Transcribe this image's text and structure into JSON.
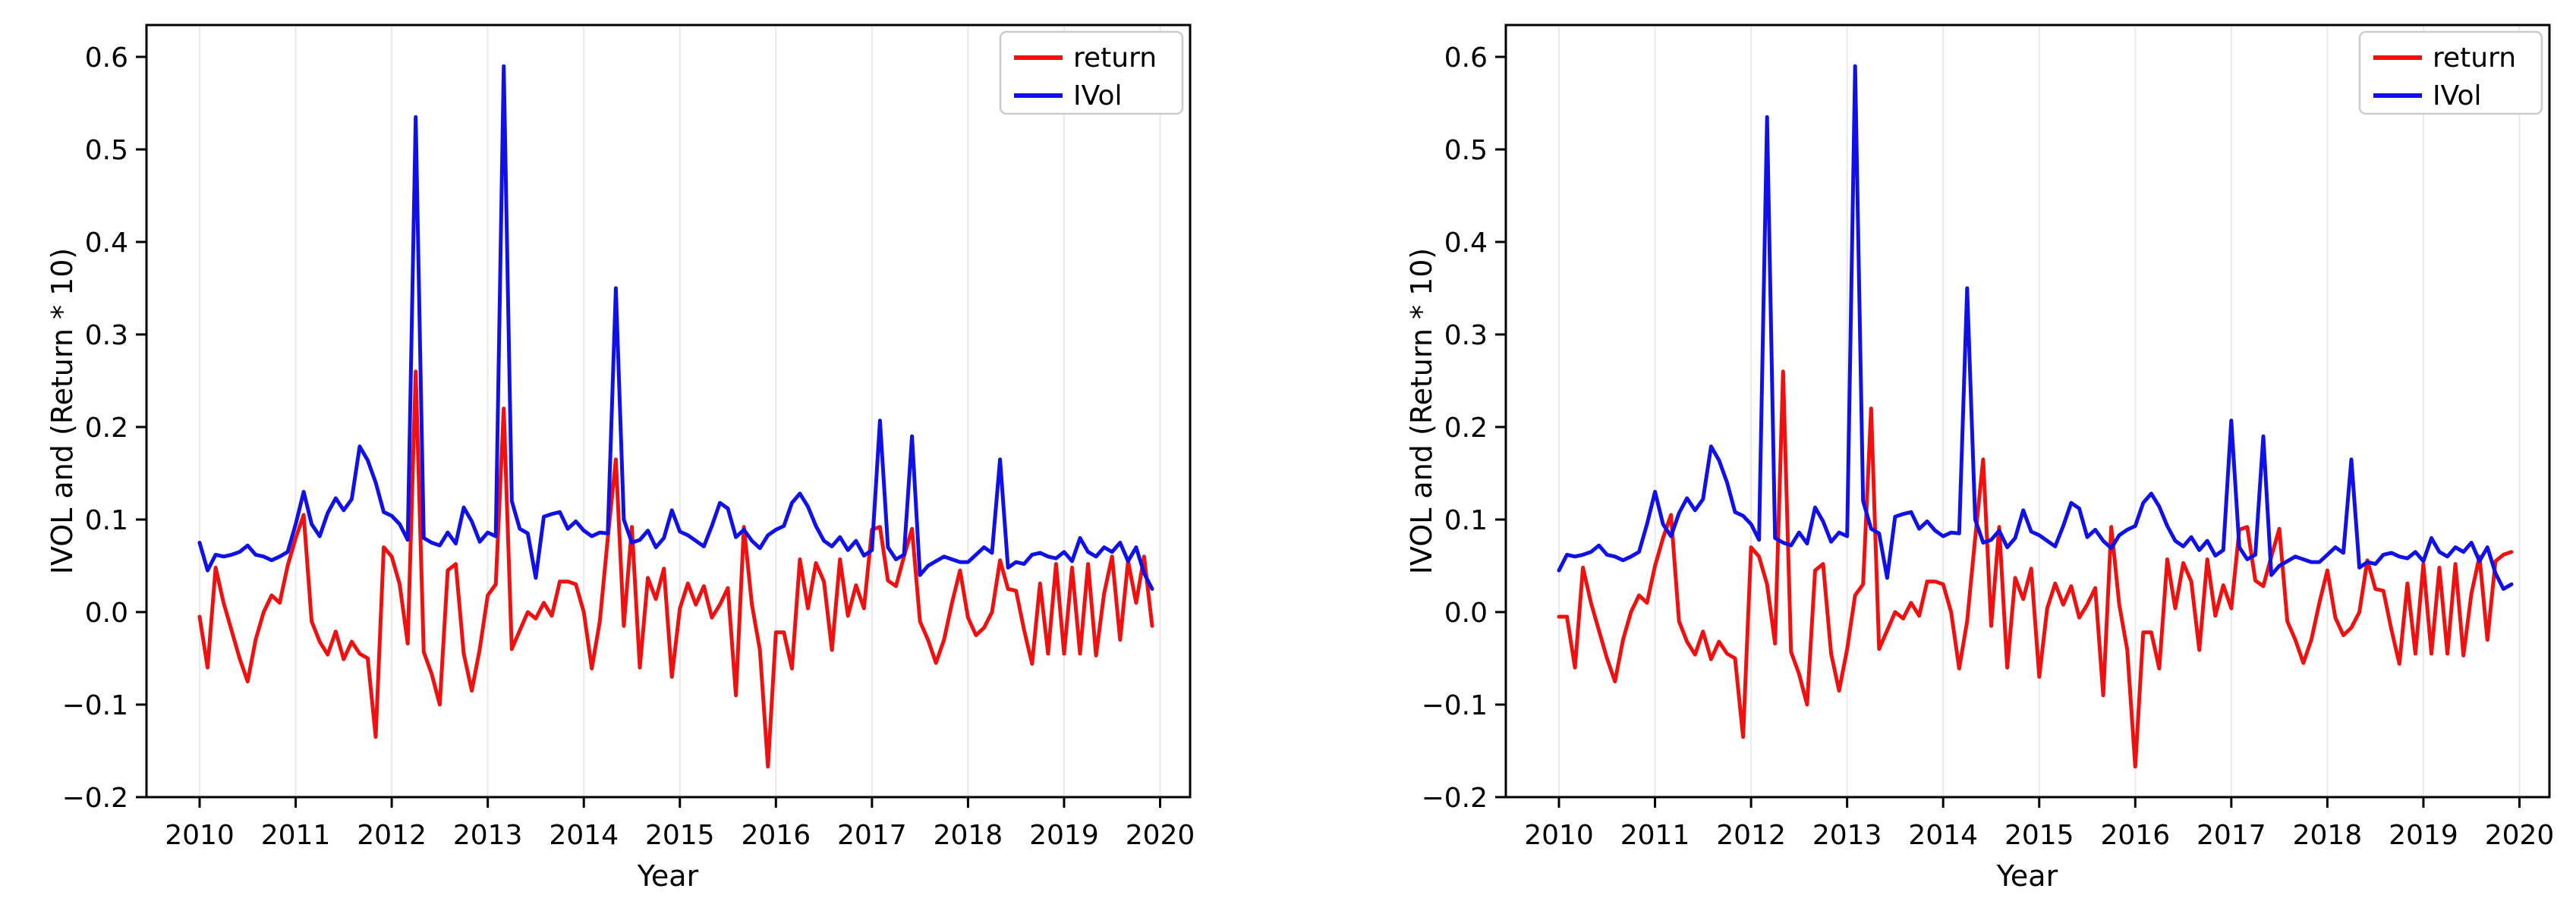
{
  "figure": {
    "background": "#ffffff",
    "grid_color": "#e9e9e9",
    "spine_color": "#000000"
  },
  "chart_data": [
    {
      "type": "line",
      "title": "",
      "xlabel": "Year",
      "ylabel": "IVOL and (Return * 10)",
      "x_start": "2010-01",
      "x_freq": "monthly",
      "xticks": [
        "2010",
        "2011",
        "2012",
        "2013",
        "2014",
        "2015",
        "2016",
        "2017",
        "2018",
        "2019",
        "2020"
      ],
      "yticks": [
        -0.2,
        -0.1,
        0.0,
        0.1,
        0.2,
        0.3,
        0.4,
        0.5,
        0.6
      ],
      "xlim": [
        2009.45,
        2020.31
      ],
      "ylim": [
        -0.2,
        0.634
      ],
      "grid": "vertical-years",
      "legend": {
        "position": "upper-right",
        "entries": [
          {
            "label": "return",
            "color": "#f01010"
          },
          {
            "label": "IVol",
            "color": "#1010e8"
          }
        ]
      },
      "series": [
        {
          "name": "return",
          "color": "#f01010",
          "values": [
            -0.005,
            -0.06,
            0.048,
            0.01,
            -0.02,
            -0.05,
            -0.075,
            -0.03,
            0.0,
            0.018,
            0.01,
            0.05,
            0.08,
            0.105,
            -0.01,
            -0.032,
            -0.046,
            -0.021,
            -0.051,
            -0.032,
            -0.045,
            -0.05,
            -0.135,
            0.07,
            0.06,
            0.03,
            -0.034,
            0.26,
            -0.043,
            -0.067,
            -0.1,
            0.045,
            0.052,
            -0.045,
            -0.085,
            -0.04,
            0.018,
            0.03,
            0.22,
            -0.04,
            -0.02,
            0.0,
            -0.007,
            0.01,
            -0.004,
            0.033,
            0.033,
            0.03,
            0.0,
            -0.061,
            -0.01,
            0.08,
            0.165,
            -0.015,
            0.092,
            -0.06,
            0.037,
            0.014,
            0.047,
            -0.07,
            0.004,
            0.031,
            0.008,
            0.028,
            -0.006,
            0.008,
            0.026,
            -0.09,
            0.092,
            0.008,
            -0.041,
            -0.167,
            -0.022,
            -0.022,
            -0.061,
            0.057,
            0.004,
            0.053,
            0.033,
            -0.041,
            0.057,
            -0.004,
            0.029,
            0.004,
            0.089,
            0.092,
            0.034,
            0.028,
            0.06,
            0.09,
            -0.01,
            -0.03,
            -0.055,
            -0.03,
            0.01,
            0.045,
            -0.006,
            -0.025,
            -0.017,
            0.0,
            0.056,
            0.025,
            0.023,
            -0.019,
            -0.056,
            0.031,
            -0.045,
            0.052,
            -0.045,
            0.048,
            -0.045,
            0.052,
            -0.047,
            0.02,
            0.06,
            -0.03,
            0.055,
            0.01,
            0.06,
            -0.015
          ]
        },
        {
          "name": "IVol",
          "color": "#1010e8",
          "values": [
            0.075,
            0.045,
            0.062,
            0.06,
            0.062,
            0.065,
            0.072,
            0.062,
            0.06,
            0.056,
            0.06,
            0.065,
            0.095,
            0.13,
            0.095,
            0.082,
            0.107,
            0.123,
            0.11,
            0.122,
            0.179,
            0.164,
            0.14,
            0.108,
            0.104,
            0.095,
            0.078,
            0.535,
            0.08,
            0.075,
            0.072,
            0.086,
            0.074,
            0.113,
            0.098,
            0.076,
            0.086,
            0.082,
            0.59,
            0.12,
            0.09,
            0.085,
            0.037,
            0.103,
            0.106,
            0.108,
            0.09,
            0.098,
            0.088,
            0.082,
            0.086,
            0.085,
            0.35,
            0.1,
            0.075,
            0.078,
            0.088,
            0.07,
            0.08,
            0.11,
            0.087,
            0.083,
            0.077,
            0.071,
            0.093,
            0.118,
            0.112,
            0.081,
            0.089,
            0.077,
            0.069,
            0.083,
            0.089,
            0.093,
            0.118,
            0.128,
            0.114,
            0.093,
            0.077,
            0.071,
            0.081,
            0.067,
            0.077,
            0.061,
            0.067,
            0.207,
            0.07,
            0.057,
            0.062,
            0.19,
            0.04,
            0.05,
            0.055,
            0.06,
            0.057,
            0.054,
            0.054,
            0.062,
            0.07,
            0.064,
            0.165,
            0.048,
            0.054,
            0.052,
            0.062,
            0.064,
            0.06,
            0.058,
            0.065,
            0.055,
            0.08,
            0.065,
            0.06,
            0.07,
            0.065,
            0.075,
            0.055,
            0.07,
            0.042,
            0.025
          ]
        }
      ]
    },
    {
      "type": "line",
      "title": "",
      "xlabel": "Year",
      "ylabel": "IVOL and (Return * 10)",
      "x_start": "2010-01",
      "x_freq": "monthly",
      "xticks": [
        "2010",
        "2011",
        "2012",
        "2013",
        "2014",
        "2015",
        "2016",
        "2017",
        "2018",
        "2019",
        "2020"
      ],
      "yticks": [
        -0.2,
        -0.1,
        0.0,
        0.1,
        0.2,
        0.3,
        0.4,
        0.5,
        0.6
      ],
      "xlim": [
        2009.45,
        2020.31
      ],
      "ylim": [
        -0.2,
        0.634
      ],
      "grid": "vertical-years",
      "legend": {
        "position": "upper-right",
        "entries": [
          {
            "label": "return",
            "color": "#f01010"
          },
          {
            "label": "IVol",
            "color": "#1010e8"
          }
        ]
      },
      "series": [
        {
          "name": "return",
          "color": "#f01010",
          "values": [
            -0.005,
            -0.005,
            -0.06,
            0.048,
            0.01,
            -0.02,
            -0.05,
            -0.075,
            -0.03,
            0.0,
            0.018,
            0.01,
            0.05,
            0.08,
            0.105,
            -0.01,
            -0.032,
            -0.046,
            -0.021,
            -0.051,
            -0.032,
            -0.045,
            -0.05,
            -0.135,
            0.07,
            0.06,
            0.03,
            -0.034,
            0.26,
            -0.043,
            -0.067,
            -0.1,
            0.045,
            0.052,
            -0.045,
            -0.085,
            -0.04,
            0.018,
            0.03,
            0.22,
            -0.04,
            -0.02,
            0.0,
            -0.007,
            0.01,
            -0.004,
            0.033,
            0.033,
            0.03,
            0.0,
            -0.061,
            -0.01,
            0.08,
            0.165,
            -0.015,
            0.092,
            -0.06,
            0.037,
            0.014,
            0.047,
            -0.07,
            0.004,
            0.031,
            0.008,
            0.028,
            -0.006,
            0.008,
            0.026,
            -0.09,
            0.092,
            0.008,
            -0.041,
            -0.167,
            -0.022,
            -0.022,
            -0.061,
            0.057,
            0.004,
            0.053,
            0.033,
            -0.041,
            0.057,
            -0.004,
            0.029,
            0.004,
            0.089,
            0.092,
            0.034,
            0.028,
            0.06,
            0.09,
            -0.01,
            -0.03,
            -0.055,
            -0.03,
            0.01,
            0.045,
            -0.006,
            -0.025,
            -0.017,
            0.0,
            0.056,
            0.025,
            0.023,
            -0.019,
            -0.056,
            0.031,
            -0.045,
            0.052,
            -0.045,
            0.048,
            -0.045,
            0.052,
            -0.047,
            0.02,
            0.06,
            -0.03,
            0.055,
            0.062,
            0.065
          ]
        },
        {
          "name": "IVol",
          "color": "#1010e8",
          "values": [
            0.045,
            0.062,
            0.06,
            0.062,
            0.065,
            0.072,
            0.062,
            0.06,
            0.056,
            0.06,
            0.065,
            0.095,
            0.13,
            0.095,
            0.082,
            0.107,
            0.123,
            0.11,
            0.122,
            0.179,
            0.164,
            0.14,
            0.108,
            0.104,
            0.095,
            0.078,
            0.535,
            0.08,
            0.075,
            0.072,
            0.086,
            0.074,
            0.113,
            0.098,
            0.076,
            0.086,
            0.082,
            0.59,
            0.12,
            0.09,
            0.085,
            0.037,
            0.103,
            0.106,
            0.108,
            0.09,
            0.098,
            0.088,
            0.082,
            0.086,
            0.085,
            0.35,
            0.1,
            0.075,
            0.078,
            0.088,
            0.07,
            0.08,
            0.11,
            0.087,
            0.083,
            0.077,
            0.071,
            0.093,
            0.118,
            0.112,
            0.081,
            0.089,
            0.077,
            0.069,
            0.083,
            0.089,
            0.093,
            0.118,
            0.128,
            0.114,
            0.093,
            0.077,
            0.071,
            0.081,
            0.067,
            0.077,
            0.061,
            0.067,
            0.207,
            0.07,
            0.057,
            0.062,
            0.19,
            0.04,
            0.05,
            0.055,
            0.06,
            0.057,
            0.054,
            0.054,
            0.062,
            0.07,
            0.064,
            0.165,
            0.048,
            0.054,
            0.052,
            0.062,
            0.064,
            0.06,
            0.058,
            0.065,
            0.055,
            0.08,
            0.065,
            0.06,
            0.07,
            0.065,
            0.075,
            0.055,
            0.07,
            0.042,
            0.025,
            0.03
          ]
        }
      ]
    }
  ]
}
